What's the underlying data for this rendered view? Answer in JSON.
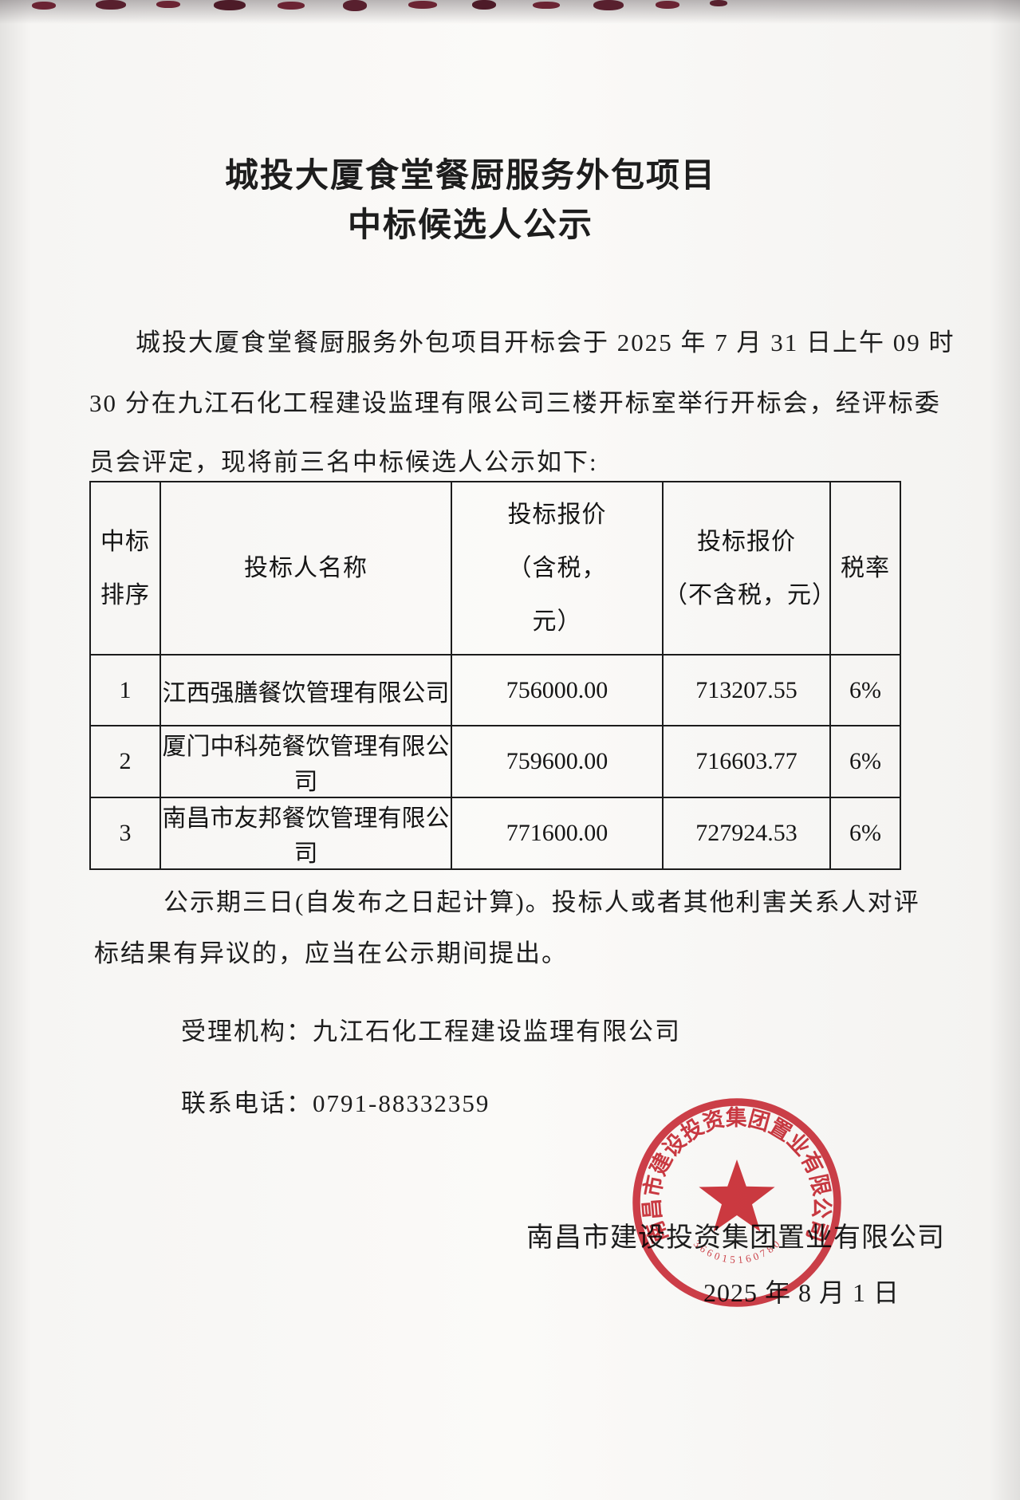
{
  "doc": {
    "title_line1": "城投大厦食堂餐厨服务外包项目",
    "title_line2": "中标候选人公示",
    "intro_lines": [
      "城投大厦食堂餐厨服务外包项目开标会于 2025 年 7 月 31 日上午 09 时",
      "30 分在九江石化工程建设监理有限公司三楼开标室举行开标会，经评标委",
      "员会评定，现将前三名中标候选人公示如下:"
    ],
    "notice_lines": [
      "公示期三日(自发布之日起计算)。投标人或者其他利害关系人对评",
      "标结果有异议的，应当在公示期间提出。"
    ],
    "agency_label": "受理机构：",
    "agency_value": "九江石化工程建设监理有限公司",
    "phone_label": "联系电话：",
    "phone_value": "0791-88332359",
    "signature_company": "南昌市建设投资集团置业有限公司",
    "signature_date": "2025 年 8 月  1 日"
  },
  "table": {
    "headers": [
      {
        "lines": [
          "中标",
          "排序"
        ]
      },
      {
        "lines": [
          "投标人名称"
        ]
      },
      {
        "lines": [
          "投标报价",
          "（含税，",
          "元）"
        ]
      },
      {
        "lines": [
          "投标报价",
          "（不含税，元）"
        ]
      },
      {
        "lines": [
          "税率"
        ]
      }
    ],
    "rows": [
      {
        "rank": "1",
        "bidder": "江西强膳餐饮管理有限公司",
        "price_tax": "756000.00",
        "price_no_tax": "713207.55",
        "tax_rate": "6%"
      },
      {
        "rank": "2",
        "bidder": "厦门中科苑餐饮管理有限公司",
        "price_tax": "759600.00",
        "price_no_tax": "716603.77",
        "tax_rate": "6%"
      },
      {
        "rank": "3",
        "bidder": "南昌市友邦餐饮管理有限公司",
        "price_tax": "771600.00",
        "price_no_tax": "727924.53",
        "tax_rate": "6%"
      }
    ]
  },
  "seal": {
    "company": "南昌市建设投资集团置业有限公司",
    "serial": "366015160780",
    "color": "#c9202a"
  }
}
